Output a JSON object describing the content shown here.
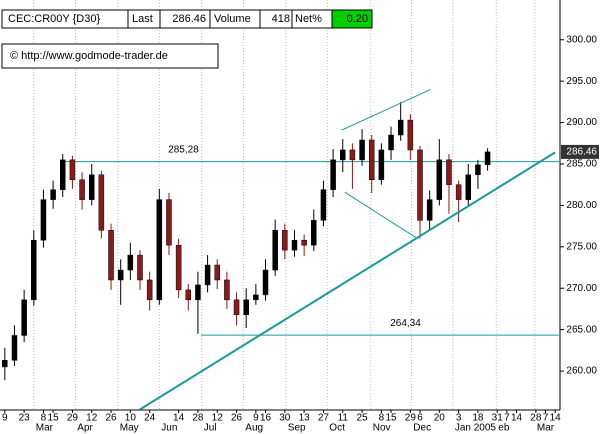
{
  "header": {
    "symbol": "CEC:CR00Y {D30}",
    "last_label": "Last",
    "last": 286.46,
    "volume_label": "Volume",
    "volume": 418,
    "net_label": "Net%",
    "net": "0.20"
  },
  "copyright": "© http://www.godmode-trader.de",
  "chart_data": {
    "type": "candlestick",
    "up_color": "#000000",
    "down_color": "#8b1a1a",
    "line_color": "#1a9a9a",
    "ohlc": [
      [
        260.5,
        262.8,
        258.9,
        261.3
      ],
      [
        261.3,
        265.5,
        260.6,
        264.3
      ],
      [
        264.3,
        269.8,
        263.5,
        268.6
      ],
      [
        268.6,
        277.0,
        267.9,
        275.8
      ],
      [
        275.8,
        281.9,
        274.9,
        280.7
      ],
      [
        280.7,
        283.0,
        279.6,
        281.9
      ],
      [
        281.9,
        286.2,
        281.0,
        285.5
      ],
      [
        285.5,
        286.0,
        282.0,
        283.1
      ],
      [
        283.1,
        284.0,
        279.5,
        280.7
      ],
      [
        280.7,
        285.0,
        280.0,
        283.7
      ],
      [
        283.7,
        284.2,
        276.0,
        277.0
      ],
      [
        277.0,
        277.8,
        269.8,
        271.0
      ],
      [
        271.0,
        273.5,
        268.0,
        272.2
      ],
      [
        272.2,
        275.5,
        271.0,
        274.0
      ],
      [
        274.0,
        274.6,
        269.8,
        271.0
      ],
      [
        271.0,
        272.0,
        267.3,
        268.6
      ],
      [
        268.6,
        282.0,
        268.0,
        280.7
      ],
      [
        280.7,
        281.5,
        274.0,
        275.2
      ],
      [
        275.2,
        276.0,
        268.8,
        269.8
      ],
      [
        269.8,
        270.5,
        267.3,
        268.6
      ],
      [
        268.6,
        272.0,
        264.5,
        270.4
      ],
      [
        270.4,
        274.0,
        269.5,
        272.8
      ],
      [
        272.8,
        273.5,
        269.9,
        271.0
      ],
      [
        271.0,
        272.0,
        267.5,
        268.6
      ],
      [
        268.6,
        269.5,
        265.5,
        266.8
      ],
      [
        266.8,
        270.0,
        265.2,
        268.6
      ],
      [
        268.6,
        270.5,
        268.0,
        269.2
      ],
      [
        269.2,
        273.5,
        268.5,
        272.2
      ],
      [
        272.2,
        278.3,
        271.5,
        277.0
      ],
      [
        277.0,
        277.8,
        273.5,
        274.6
      ],
      [
        274.6,
        277.0,
        273.8,
        275.8
      ],
      [
        275.8,
        276.5,
        273.9,
        275.2
      ],
      [
        275.2,
        279.5,
        274.5,
        278.2
      ],
      [
        278.2,
        283.0,
        277.5,
        281.9
      ],
      [
        281.9,
        286.8,
        281.0,
        285.5
      ],
      [
        285.5,
        288.0,
        284.0,
        286.7
      ],
      [
        286.7,
        287.5,
        282.0,
        285.5
      ],
      [
        285.5,
        289.2,
        284.8,
        287.9
      ],
      [
        287.9,
        288.5,
        281.5,
        283.1
      ],
      [
        283.1,
        287.5,
        282.5,
        286.7
      ],
      [
        286.7,
        289.5,
        285.5,
        288.5
      ],
      [
        288.5,
        292.5,
        287.8,
        290.3
      ],
      [
        290.3,
        291.0,
        285.5,
        286.7
      ],
      [
        286.7,
        287.2,
        276.0,
        278.2
      ],
      [
        278.2,
        281.8,
        277.0,
        280.7
      ],
      [
        280.7,
        288.0,
        280.0,
        285.5
      ],
      [
        285.5,
        286.2,
        279.0,
        282.5
      ],
      [
        282.5,
        283.0,
        278.0,
        280.7
      ],
      [
        280.7,
        285.0,
        280.0,
        283.7
      ],
      [
        283.7,
        285.5,
        282.0,
        284.9
      ],
      [
        284.9,
        286.9,
        284.2,
        286.46
      ]
    ],
    "xlim": [
      -0.5,
      57.5
    ],
    "ylim": [
      255.3,
      304.8
    ],
    "yticks": [
      {
        "value": 260,
        "label": "260.00"
      },
      {
        "value": 265,
        "label": "265.00"
      },
      {
        "value": 270,
        "label": "270.00"
      },
      {
        "value": 275,
        "label": "275.00"
      },
      {
        "value": 280,
        "label": "280.00"
      },
      {
        "value": 285,
        "label": "285.00"
      },
      {
        "value": 290,
        "label": "290.00"
      },
      {
        "value": 295,
        "label": "295.00"
      },
      {
        "value": 300,
        "label": "300.00"
      }
    ],
    "xticks": [
      {
        "value": 0,
        "label": "9"
      },
      {
        "value": 2,
        "label": "23"
      },
      {
        "value": 4,
        "label": "8"
      },
      {
        "value": 5,
        "label": "15"
      },
      {
        "value": 7,
        "label": "29"
      },
      {
        "value": 9,
        "label": "12"
      },
      {
        "value": 11,
        "label": "26"
      },
      {
        "value": 13,
        "label": "10"
      },
      {
        "value": 15,
        "label": "24"
      },
      {
        "value": 18,
        "label": "14"
      },
      {
        "value": 20,
        "label": "28"
      },
      {
        "value": 22,
        "label": "12"
      },
      {
        "value": 24,
        "label": "26"
      },
      {
        "value": 26,
        "label": "9"
      },
      {
        "value": 27,
        "label": "16"
      },
      {
        "value": 29,
        "label": "30"
      },
      {
        "value": 31,
        "label": "13"
      },
      {
        "value": 33,
        "label": "27"
      },
      {
        "value": 35,
        "label": "11"
      },
      {
        "value": 37,
        "label": "25"
      },
      {
        "value": 39,
        "label": "8"
      },
      {
        "value": 40,
        "label": "15"
      },
      {
        "value": 42,
        "label": "29"
      },
      {
        "value": 43,
        "label": "6"
      },
      {
        "value": 45,
        "label": "20"
      },
      {
        "value": 47,
        "label": "3"
      },
      {
        "value": 49,
        "label": "18"
      },
      {
        "value": 51,
        "label": "31"
      },
      {
        "value": 52,
        "label": "7"
      },
      {
        "value": 53,
        "label": "14"
      },
      {
        "value": 55,
        "label": "28"
      },
      {
        "value": 56,
        "label": "7"
      },
      {
        "value": 57,
        "label": "14"
      }
    ],
    "month_ticks": [
      {
        "value": 3,
        "label": "Mar"
      },
      {
        "value": 7.3,
        "label": "Apr"
      },
      {
        "value": 11.7,
        "label": "May"
      },
      {
        "value": 16,
        "label": "Jun"
      },
      {
        "value": 20.4,
        "label": "Jul"
      },
      {
        "value": 24.7,
        "label": "Aug"
      },
      {
        "value": 29.1,
        "label": "Sep"
      },
      {
        "value": 33.4,
        "label": "Oct"
      },
      {
        "value": 37.9,
        "label": "Nov"
      },
      {
        "value": 42.1,
        "label": "Dec"
      },
      {
        "value": 46.4,
        "label": "Jan 2005"
      },
      {
        "value": 50.9,
        "label": "eb"
      },
      {
        "value": 54.9,
        "label": "Mar"
      }
    ],
    "grid": true,
    "levels": [
      {
        "value": 285.28,
        "value_label": "285,28",
        "from": 6.2,
        "label_at": 18.5
      },
      {
        "value": 264.34,
        "value_label": "264,34",
        "from": 20.3,
        "label_at": 41.5
      }
    ],
    "trendlines": [
      {
        "from": [
          13.9,
          255.3
        ],
        "to": [
          57,
          286.4
        ],
        "width": 2
      },
      {
        "from": [
          34.9,
          289.1
        ],
        "to": [
          44.1,
          294.0
        ],
        "width": 1
      },
      {
        "from": [
          35.2,
          281.6
        ],
        "to": [
          42.6,
          276.1
        ],
        "width": 1
      }
    ]
  }
}
